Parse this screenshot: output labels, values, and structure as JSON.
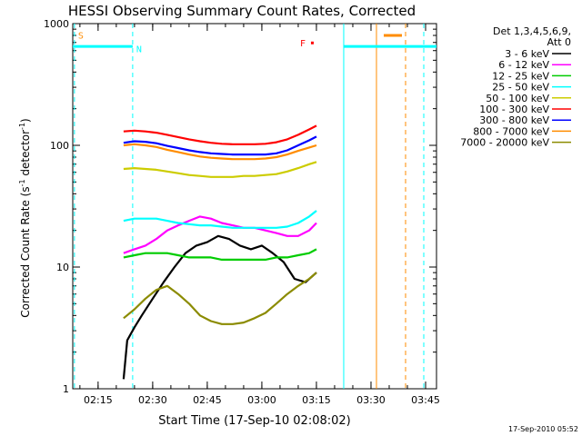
{
  "chart_data": {
    "type": "line",
    "title": "HESSI Observing Summary Count Rates, Corrected",
    "xlabel": "Start Time (17-Sep-10 02:08:02)",
    "ylabel": "Corrected Count Rate (s",
    "ylabel_sup1": "-1",
    "ylabel_mid": " detector",
    "ylabel_sup2": "-1",
    "ylabel_end": ")",
    "yscale": "log",
    "ylim": [
      1,
      1000
    ],
    "xlim": [
      "02:08:02",
      "03:48:00"
    ],
    "xticks": [
      "02:15",
      "02:30",
      "02:45",
      "03:00",
      "03:15",
      "03:30",
      "03:45"
    ],
    "yticks": [
      "1",
      "10",
      "100",
      "1000"
    ],
    "legend_title_1": "Det 1,3,4,5,6,9,",
    "legend_title_2": "Att 0",
    "legend_placement": "right",
    "timestamp": "17-Sep-2010 05:52",
    "flag_labels": {
      "S": "S",
      "N": "N",
      "F": "F"
    },
    "series": [
      {
        "name": "3 - 6 keV",
        "color": "#000000",
        "points": [
          [
            "02:22",
            1.2
          ],
          [
            "02:23",
            2.5
          ],
          [
            "02:25",
            3.2
          ],
          [
            "02:27",
            4
          ],
          [
            "02:30",
            5.5
          ],
          [
            "02:33",
            7.5
          ],
          [
            "02:36",
            10
          ],
          [
            "02:39",
            13
          ],
          [
            "02:42",
            15
          ],
          [
            "02:45",
            16
          ],
          [
            "02:48",
            18
          ],
          [
            "02:51",
            17
          ],
          [
            "02:54",
            15
          ],
          [
            "02:57",
            14
          ],
          [
            "03:00",
            15
          ],
          [
            "03:03",
            13
          ],
          [
            "03:06",
            11
          ],
          [
            "03:09",
            8
          ],
          [
            "03:12",
            7.5
          ],
          [
            "03:15",
            9
          ]
        ]
      },
      {
        "name": "6 - 12 keV",
        "color": "#ff00ff",
        "points": [
          [
            "02:22",
            13
          ],
          [
            "02:25",
            14
          ],
          [
            "02:28",
            15
          ],
          [
            "02:31",
            17
          ],
          [
            "02:34",
            20
          ],
          [
            "02:37",
            22
          ],
          [
            "02:40",
            24
          ],
          [
            "02:43",
            26
          ],
          [
            "02:46",
            25
          ],
          [
            "02:49",
            23
          ],
          [
            "02:52",
            22
          ],
          [
            "02:55",
            21
          ],
          [
            "02:58",
            21
          ],
          [
            "03:01",
            20
          ],
          [
            "03:04",
            19
          ],
          [
            "03:07",
            18
          ],
          [
            "03:10",
            18
          ],
          [
            "03:13",
            20
          ],
          [
            "03:15",
            23
          ]
        ]
      },
      {
        "name": "12 - 25 keV",
        "color": "#00cc00",
        "points": [
          [
            "02:22",
            12
          ],
          [
            "02:25",
            12.5
          ],
          [
            "02:28",
            13
          ],
          [
            "02:31",
            13
          ],
          [
            "02:34",
            13
          ],
          [
            "02:37",
            12.5
          ],
          [
            "02:40",
            12
          ],
          [
            "02:43",
            12
          ],
          [
            "02:46",
            12
          ],
          [
            "02:49",
            11.5
          ],
          [
            "02:52",
            11.5
          ],
          [
            "02:55",
            11.5
          ],
          [
            "02:58",
            11.5
          ],
          [
            "03:01",
            11.5
          ],
          [
            "03:04",
            12
          ],
          [
            "03:07",
            12
          ],
          [
            "03:10",
            12.5
          ],
          [
            "03:13",
            13
          ],
          [
            "03:15",
            14
          ]
        ]
      },
      {
        "name": "25 - 50 keV",
        "color": "#00ffff",
        "points": [
          [
            "02:22",
            24
          ],
          [
            "02:25",
            25
          ],
          [
            "02:28",
            25
          ],
          [
            "02:31",
            25
          ],
          [
            "02:34",
            24
          ],
          [
            "02:37",
            23
          ],
          [
            "02:40",
            22.5
          ],
          [
            "02:43",
            22
          ],
          [
            "02:46",
            22
          ],
          [
            "02:49",
            21.5
          ],
          [
            "02:52",
            21
          ],
          [
            "02:55",
            21
          ],
          [
            "02:58",
            21
          ],
          [
            "03:01",
            21
          ],
          [
            "03:04",
            21
          ],
          [
            "03:07",
            21.5
          ],
          [
            "03:10",
            23
          ],
          [
            "03:13",
            26
          ],
          [
            "03:15",
            29
          ]
        ]
      },
      {
        "name": "50 - 100 keV",
        "color": "#cccc00",
        "points": [
          [
            "02:22",
            64
          ],
          [
            "02:25",
            65
          ],
          [
            "02:28",
            64
          ],
          [
            "02:31",
            63
          ],
          [
            "02:34",
            61
          ],
          [
            "02:37",
            59
          ],
          [
            "02:40",
            57
          ],
          [
            "02:43",
            56
          ],
          [
            "02:46",
            55
          ],
          [
            "02:49",
            55
          ],
          [
            "02:52",
            55
          ],
          [
            "02:55",
            56
          ],
          [
            "02:58",
            56
          ],
          [
            "03:01",
            57
          ],
          [
            "03:04",
            58
          ],
          [
            "03:07",
            61
          ],
          [
            "03:10",
            65
          ],
          [
            "03:13",
            70
          ],
          [
            "03:15",
            73
          ]
        ]
      },
      {
        "name": "100 - 300 keV",
        "color": "#ff0000",
        "points": [
          [
            "02:22",
            130
          ],
          [
            "02:25",
            132
          ],
          [
            "02:28",
            130
          ],
          [
            "02:31",
            127
          ],
          [
            "02:34",
            122
          ],
          [
            "02:37",
            117
          ],
          [
            "02:40",
            112
          ],
          [
            "02:43",
            108
          ],
          [
            "02:46",
            105
          ],
          [
            "02:49",
            103
          ],
          [
            "02:52",
            102
          ],
          [
            "02:55",
            102
          ],
          [
            "02:58",
            102
          ],
          [
            "03:01",
            103
          ],
          [
            "03:04",
            106
          ],
          [
            "03:07",
            112
          ],
          [
            "03:10",
            122
          ],
          [
            "03:13",
            135
          ],
          [
            "03:15",
            145
          ]
        ]
      },
      {
        "name": "300 - 800 keV",
        "color": "#0000ff",
        "points": [
          [
            "02:22",
            105
          ],
          [
            "02:25",
            108
          ],
          [
            "02:28",
            107
          ],
          [
            "02:31",
            104
          ],
          [
            "02:34",
            99
          ],
          [
            "02:37",
            95
          ],
          [
            "02:40",
            91
          ],
          [
            "02:43",
            88
          ],
          [
            "02:46",
            86
          ],
          [
            "02:49",
            85
          ],
          [
            "02:52",
            84
          ],
          [
            "02:55",
            84
          ],
          [
            "02:58",
            84
          ],
          [
            "03:01",
            84
          ],
          [
            "03:04",
            86
          ],
          [
            "03:07",
            91
          ],
          [
            "03:10",
            100
          ],
          [
            "03:13",
            110
          ],
          [
            "03:15",
            118
          ]
        ]
      },
      {
        "name": "800 - 7000 keV",
        "color": "#ff8c00",
        "points": [
          [
            "02:22",
            100
          ],
          [
            "02:25",
            102
          ],
          [
            "02:28",
            100
          ],
          [
            "02:31",
            97
          ],
          [
            "02:34",
            92
          ],
          [
            "02:37",
            88
          ],
          [
            "02:40",
            84
          ],
          [
            "02:43",
            81
          ],
          [
            "02:46",
            79
          ],
          [
            "02:49",
            78
          ],
          [
            "02:52",
            77
          ],
          [
            "02:55",
            77
          ],
          [
            "02:58",
            77
          ],
          [
            "03:01",
            78
          ],
          [
            "03:04",
            80
          ],
          [
            "03:07",
            84
          ],
          [
            "03:10",
            90
          ],
          [
            "03:13",
            96
          ],
          [
            "03:15",
            100
          ]
        ]
      },
      {
        "name": "7000 - 20000 keV",
        "color": "#8b8b00",
        "points": [
          [
            "02:22",
            3.8
          ],
          [
            "02:25",
            4.5
          ],
          [
            "02:28",
            5.5
          ],
          [
            "02:31",
            6.5
          ],
          [
            "02:34",
            7
          ],
          [
            "02:37",
            6
          ],
          [
            "02:40",
            5
          ],
          [
            "02:43",
            4
          ],
          [
            "02:46",
            3.6
          ],
          [
            "02:49",
            3.4
          ],
          [
            "02:52",
            3.4
          ],
          [
            "02:55",
            3.5
          ],
          [
            "02:58",
            3.8
          ],
          [
            "03:01",
            4.2
          ],
          [
            "03:04",
            5
          ],
          [
            "03:07",
            6
          ],
          [
            "03:10",
            7
          ],
          [
            "03:13",
            8
          ],
          [
            "03:15",
            9
          ]
        ]
      }
    ],
    "intervals": [
      {
        "kind": "flag-line",
        "color": "#00ffff",
        "start": "02:08:02",
        "end": "02:24:30",
        "level": 650
      },
      {
        "kind": "flag-line",
        "color": "#00ffff",
        "start": "03:22:30",
        "end": "03:48:00",
        "level": 650
      },
      {
        "kind": "flag-line",
        "color": "#ff8c00",
        "start": "03:33:30",
        "end": "03:38:30",
        "level": 800
      }
    ],
    "markers": [
      {
        "kind": "F-dot",
        "color": "#ff0000",
        "time": "03:13:00",
        "level": 700
      }
    ],
    "vlines": [
      {
        "time": "02:08:30",
        "color": "#00ffff",
        "style": "dashed"
      },
      {
        "time": "02:24:30",
        "color": "#00ffff",
        "style": "dashed"
      },
      {
        "time": "03:22:30",
        "color": "#00ffff",
        "style": "solid"
      },
      {
        "time": "03:31:30",
        "color": "#ff8c00",
        "style": "solid"
      },
      {
        "time": "03:39:30",
        "color": "#ff8c00",
        "style": "dashed"
      },
      {
        "time": "03:44:30",
        "color": "#00ffff",
        "style": "dashed"
      }
    ]
  }
}
